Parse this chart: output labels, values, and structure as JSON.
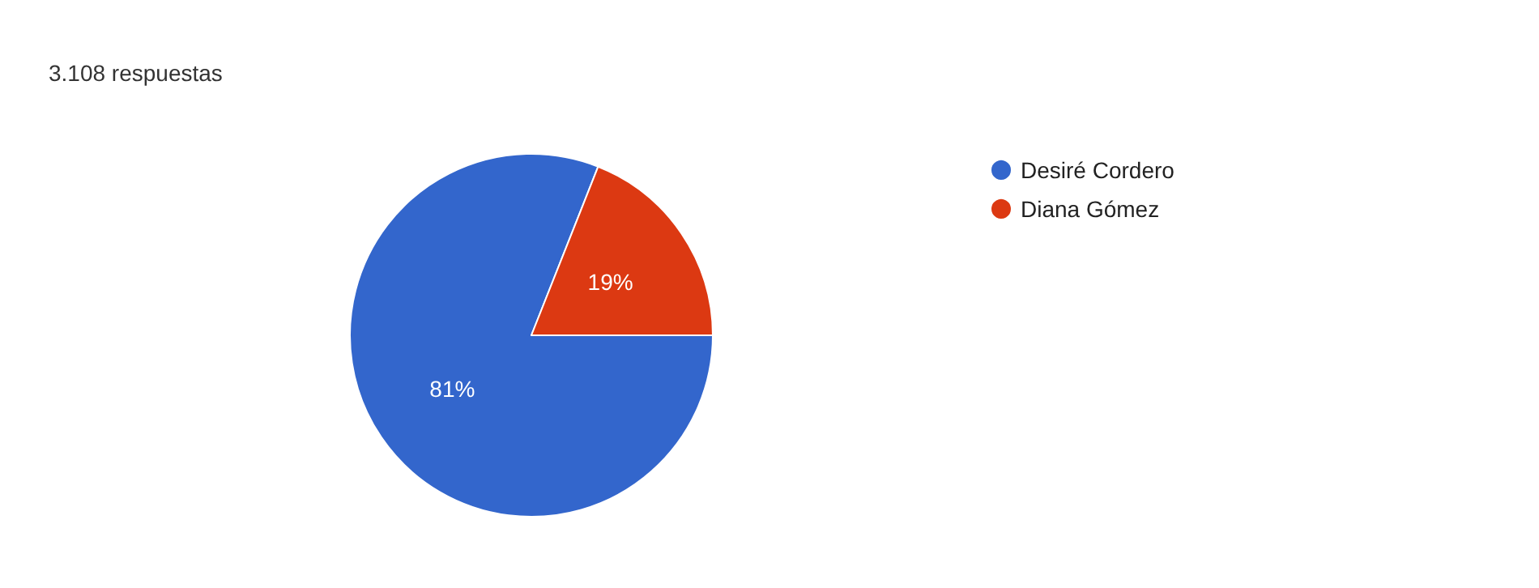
{
  "chart_data": {
    "type": "pie",
    "title": "3.108 respuestas",
    "categories": [
      "Desiré Cordero",
      "Diana Gómez"
    ],
    "values": [
      81,
      19
    ],
    "colors": [
      "#3366cc",
      "#dc3912"
    ],
    "value_labels": [
      "81%",
      "19%"
    ],
    "legend": "top right"
  }
}
